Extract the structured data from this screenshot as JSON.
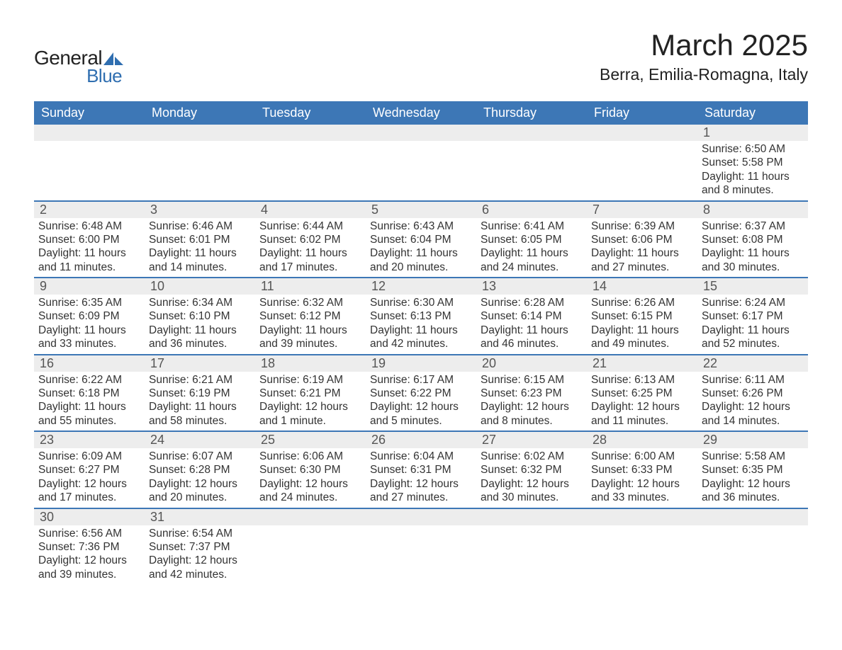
{
  "logo": {
    "word1": "General",
    "word2": "Blue",
    "accent_color": "#2f6eb0"
  },
  "title": "March 2025",
  "subtitle": "Berra, Emilia-Romagna, Italy",
  "colors": {
    "header_bg": "#3d77b6",
    "header_text": "#ffffff",
    "strip_bg": "#ededed",
    "divider": "#3d77b6",
    "body_text": "#333333"
  },
  "days_of_week": [
    "Sunday",
    "Monday",
    "Tuesday",
    "Wednesday",
    "Thursday",
    "Friday",
    "Saturday"
  ],
  "weeks": [
    [
      {
        "empty": true
      },
      {
        "empty": true
      },
      {
        "empty": true
      },
      {
        "empty": true
      },
      {
        "empty": true
      },
      {
        "empty": true
      },
      {
        "num": "1",
        "sunrise": "Sunrise: 6:50 AM",
        "sunset": "Sunset: 5:58 PM",
        "daylight": "Daylight: 11 hours and 8 minutes."
      }
    ],
    [
      {
        "num": "2",
        "sunrise": "Sunrise: 6:48 AM",
        "sunset": "Sunset: 6:00 PM",
        "daylight": "Daylight: 11 hours and 11 minutes."
      },
      {
        "num": "3",
        "sunrise": "Sunrise: 6:46 AM",
        "sunset": "Sunset: 6:01 PM",
        "daylight": "Daylight: 11 hours and 14 minutes."
      },
      {
        "num": "4",
        "sunrise": "Sunrise: 6:44 AM",
        "sunset": "Sunset: 6:02 PM",
        "daylight": "Daylight: 11 hours and 17 minutes."
      },
      {
        "num": "5",
        "sunrise": "Sunrise: 6:43 AM",
        "sunset": "Sunset: 6:04 PM",
        "daylight": "Daylight: 11 hours and 20 minutes."
      },
      {
        "num": "6",
        "sunrise": "Sunrise: 6:41 AM",
        "sunset": "Sunset: 6:05 PM",
        "daylight": "Daylight: 11 hours and 24 minutes."
      },
      {
        "num": "7",
        "sunrise": "Sunrise: 6:39 AM",
        "sunset": "Sunset: 6:06 PM",
        "daylight": "Daylight: 11 hours and 27 minutes."
      },
      {
        "num": "8",
        "sunrise": "Sunrise: 6:37 AM",
        "sunset": "Sunset: 6:08 PM",
        "daylight": "Daylight: 11 hours and 30 minutes."
      }
    ],
    [
      {
        "num": "9",
        "sunrise": "Sunrise: 6:35 AM",
        "sunset": "Sunset: 6:09 PM",
        "daylight": "Daylight: 11 hours and 33 minutes."
      },
      {
        "num": "10",
        "sunrise": "Sunrise: 6:34 AM",
        "sunset": "Sunset: 6:10 PM",
        "daylight": "Daylight: 11 hours and 36 minutes."
      },
      {
        "num": "11",
        "sunrise": "Sunrise: 6:32 AM",
        "sunset": "Sunset: 6:12 PM",
        "daylight": "Daylight: 11 hours and 39 minutes."
      },
      {
        "num": "12",
        "sunrise": "Sunrise: 6:30 AM",
        "sunset": "Sunset: 6:13 PM",
        "daylight": "Daylight: 11 hours and 42 minutes."
      },
      {
        "num": "13",
        "sunrise": "Sunrise: 6:28 AM",
        "sunset": "Sunset: 6:14 PM",
        "daylight": "Daylight: 11 hours and 46 minutes."
      },
      {
        "num": "14",
        "sunrise": "Sunrise: 6:26 AM",
        "sunset": "Sunset: 6:15 PM",
        "daylight": "Daylight: 11 hours and 49 minutes."
      },
      {
        "num": "15",
        "sunrise": "Sunrise: 6:24 AM",
        "sunset": "Sunset: 6:17 PM",
        "daylight": "Daylight: 11 hours and 52 minutes."
      }
    ],
    [
      {
        "num": "16",
        "sunrise": "Sunrise: 6:22 AM",
        "sunset": "Sunset: 6:18 PM",
        "daylight": "Daylight: 11 hours and 55 minutes."
      },
      {
        "num": "17",
        "sunrise": "Sunrise: 6:21 AM",
        "sunset": "Sunset: 6:19 PM",
        "daylight": "Daylight: 11 hours and 58 minutes."
      },
      {
        "num": "18",
        "sunrise": "Sunrise: 6:19 AM",
        "sunset": "Sunset: 6:21 PM",
        "daylight": "Daylight: 12 hours and 1 minute."
      },
      {
        "num": "19",
        "sunrise": "Sunrise: 6:17 AM",
        "sunset": "Sunset: 6:22 PM",
        "daylight": "Daylight: 12 hours and 5 minutes."
      },
      {
        "num": "20",
        "sunrise": "Sunrise: 6:15 AM",
        "sunset": "Sunset: 6:23 PM",
        "daylight": "Daylight: 12 hours and 8 minutes."
      },
      {
        "num": "21",
        "sunrise": "Sunrise: 6:13 AM",
        "sunset": "Sunset: 6:25 PM",
        "daylight": "Daylight: 12 hours and 11 minutes."
      },
      {
        "num": "22",
        "sunrise": "Sunrise: 6:11 AM",
        "sunset": "Sunset: 6:26 PM",
        "daylight": "Daylight: 12 hours and 14 minutes."
      }
    ],
    [
      {
        "num": "23",
        "sunrise": "Sunrise: 6:09 AM",
        "sunset": "Sunset: 6:27 PM",
        "daylight": "Daylight: 12 hours and 17 minutes."
      },
      {
        "num": "24",
        "sunrise": "Sunrise: 6:07 AM",
        "sunset": "Sunset: 6:28 PM",
        "daylight": "Daylight: 12 hours and 20 minutes."
      },
      {
        "num": "25",
        "sunrise": "Sunrise: 6:06 AM",
        "sunset": "Sunset: 6:30 PM",
        "daylight": "Daylight: 12 hours and 24 minutes."
      },
      {
        "num": "26",
        "sunrise": "Sunrise: 6:04 AM",
        "sunset": "Sunset: 6:31 PM",
        "daylight": "Daylight: 12 hours and 27 minutes."
      },
      {
        "num": "27",
        "sunrise": "Sunrise: 6:02 AM",
        "sunset": "Sunset: 6:32 PM",
        "daylight": "Daylight: 12 hours and 30 minutes."
      },
      {
        "num": "28",
        "sunrise": "Sunrise: 6:00 AM",
        "sunset": "Sunset: 6:33 PM",
        "daylight": "Daylight: 12 hours and 33 minutes."
      },
      {
        "num": "29",
        "sunrise": "Sunrise: 5:58 AM",
        "sunset": "Sunset: 6:35 PM",
        "daylight": "Daylight: 12 hours and 36 minutes."
      }
    ],
    [
      {
        "num": "30",
        "sunrise": "Sunrise: 6:56 AM",
        "sunset": "Sunset: 7:36 PM",
        "daylight": "Daylight: 12 hours and 39 minutes."
      },
      {
        "num": "31",
        "sunrise": "Sunrise: 6:54 AM",
        "sunset": "Sunset: 7:37 PM",
        "daylight": "Daylight: 12 hours and 42 minutes."
      },
      {
        "empty": true
      },
      {
        "empty": true
      },
      {
        "empty": true
      },
      {
        "empty": true
      },
      {
        "empty": true
      }
    ]
  ]
}
